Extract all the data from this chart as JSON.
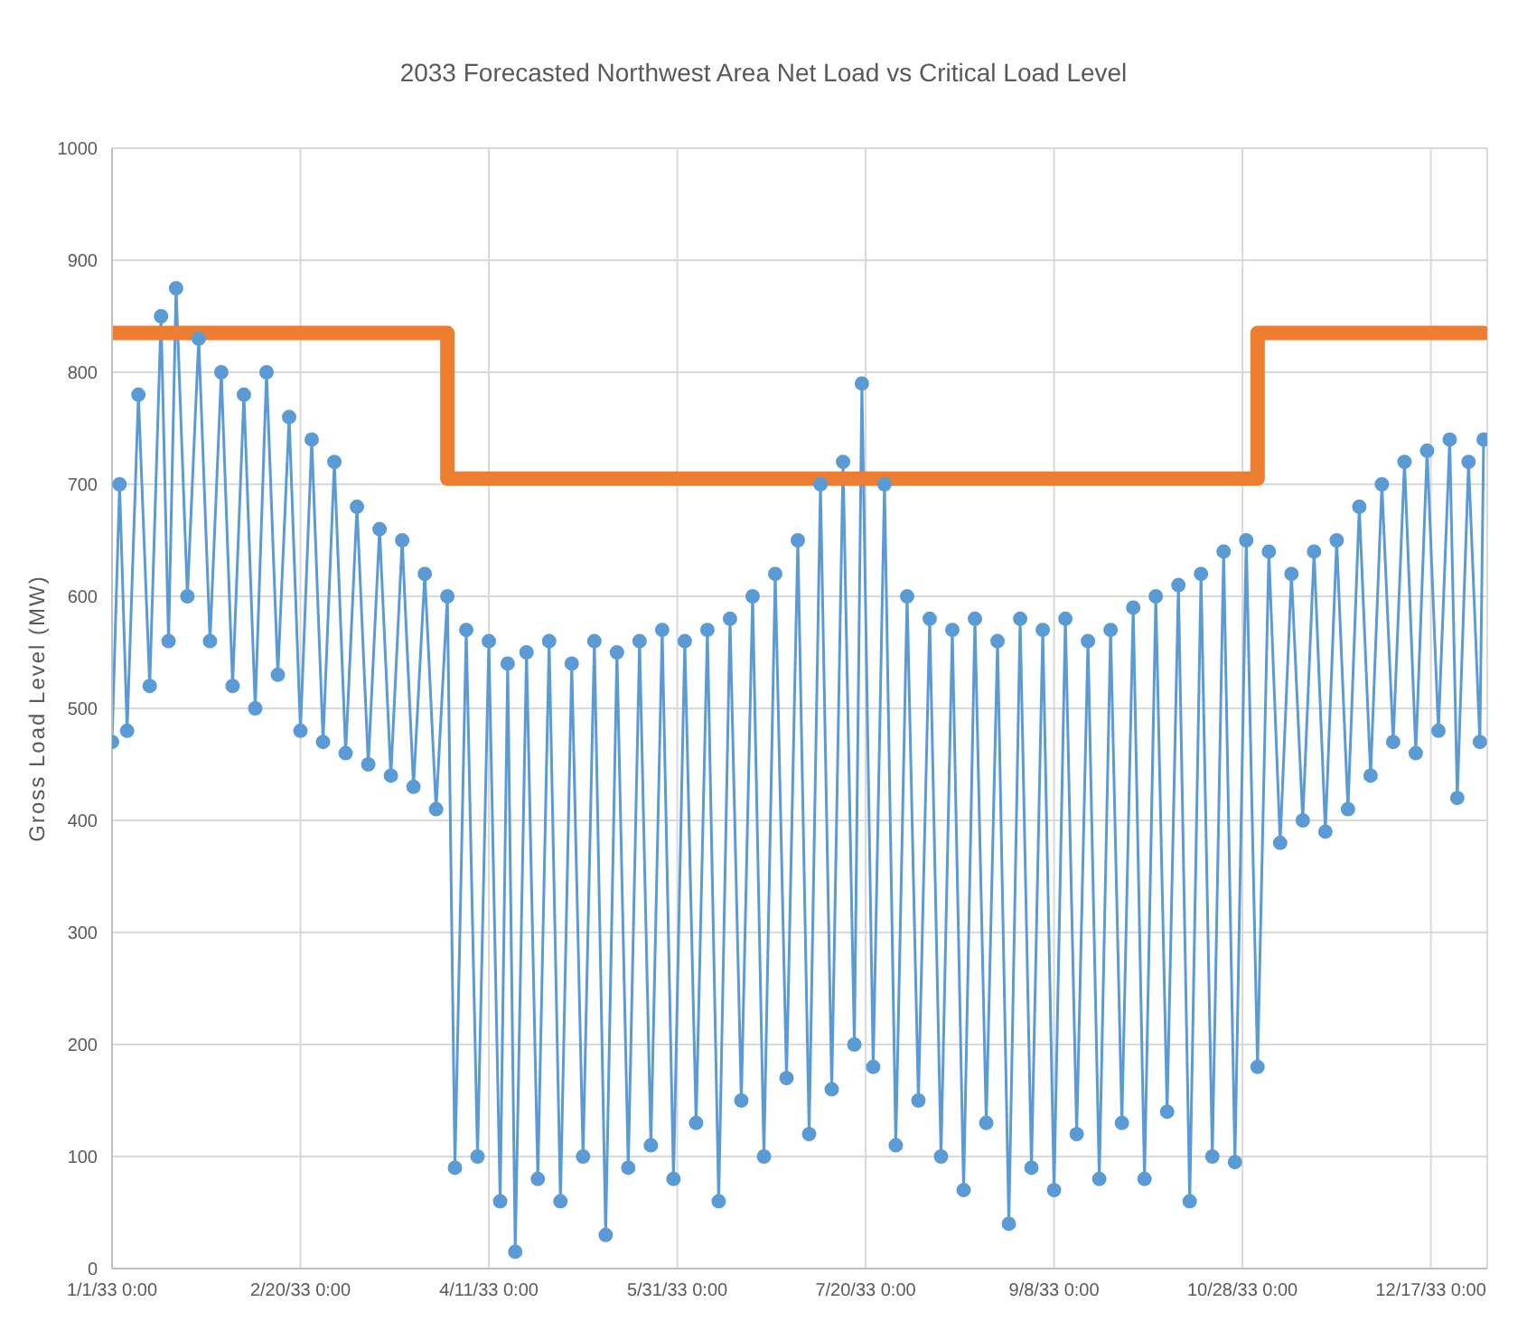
{
  "chart_data": {
    "type": "line",
    "title": "2033 Forecasted Northwest Area Net Load vs Critical Load Level",
    "ylabel": "Gross Load Level (MW)",
    "xlim": [
      "2033-01-01",
      "2033-12-31T23:00"
    ],
    "xticks": [
      {
        "value": "2033-01-01",
        "label": "1/1/33 0:00"
      },
      {
        "value": "2033-02-20",
        "label": "2/20/33 0:00"
      },
      {
        "value": "2033-04-11",
        "label": "4/11/33 0:00"
      },
      {
        "value": "2033-05-31",
        "label": "5/31/33 0:00"
      },
      {
        "value": "2033-07-20",
        "label": "7/20/33 0:00"
      },
      {
        "value": "2033-09-08",
        "label": "9/8/33 0:00"
      },
      {
        "value": "2033-10-28",
        "label": "10/28/33 0:00"
      },
      {
        "value": "2033-12-17",
        "label": "12/17/33 0:00"
      }
    ],
    "ylim": [
      0,
      1000
    ],
    "yticks": [
      0,
      100,
      200,
      300,
      400,
      500,
      600,
      700,
      800,
      900,
      1000
    ],
    "grid": true,
    "series": [
      {
        "color": "#5b9bd5",
        "marker": "circle",
        "x": [
          "2033-01-01",
          "2033-01-03",
          "2033-01-05",
          "2033-01-08",
          "2033-01-11",
          "2033-01-14",
          "2033-01-16",
          "2033-01-18",
          "2033-01-21",
          "2033-01-24",
          "2033-01-27",
          "2033-01-30",
          "2033-02-02",
          "2033-02-05",
          "2033-02-08",
          "2033-02-11",
          "2033-02-14",
          "2033-02-17",
          "2033-02-20",
          "2033-02-23",
          "2033-02-26",
          "2033-03-01",
          "2033-03-04",
          "2033-03-07",
          "2033-03-10",
          "2033-03-13",
          "2033-03-16",
          "2033-03-19",
          "2033-03-22",
          "2033-03-25",
          "2033-03-28",
          "2033-03-31",
          "2033-04-02",
          "2033-04-05",
          "2033-04-08",
          "2033-04-11",
          "2033-04-14",
          "2033-04-16",
          "2033-04-18",
          "2033-04-21",
          "2033-04-24",
          "2033-04-27",
          "2033-04-30",
          "2033-05-03",
          "2033-05-06",
          "2033-05-09",
          "2033-05-12",
          "2033-05-15",
          "2033-05-18",
          "2033-05-21",
          "2033-05-24",
          "2033-05-27",
          "2033-05-30",
          "2033-06-02",
          "2033-06-05",
          "2033-06-08",
          "2033-06-11",
          "2033-06-14",
          "2033-06-17",
          "2033-06-20",
          "2033-06-23",
          "2033-06-26",
          "2033-06-29",
          "2033-07-02",
          "2033-07-05",
          "2033-07-08",
          "2033-07-11",
          "2033-07-14",
          "2033-07-17",
          "2033-07-19",
          "2033-07-22",
          "2033-07-25",
          "2033-07-28",
          "2033-07-31",
          "2033-08-03",
          "2033-08-06",
          "2033-08-09",
          "2033-08-12",
          "2033-08-15",
          "2033-08-18",
          "2033-08-21",
          "2033-08-24",
          "2033-08-27",
          "2033-08-30",
          "2033-09-02",
          "2033-09-05",
          "2033-09-08",
          "2033-09-11",
          "2033-09-14",
          "2033-09-17",
          "2033-09-20",
          "2033-09-23",
          "2033-09-26",
          "2033-09-29",
          "2033-10-02",
          "2033-10-05",
          "2033-10-08",
          "2033-10-11",
          "2033-10-14",
          "2033-10-17",
          "2033-10-20",
          "2033-10-23",
          "2033-10-26",
          "2033-10-29",
          "2033-11-01",
          "2033-11-04",
          "2033-11-07",
          "2033-11-10",
          "2033-11-13",
          "2033-11-16",
          "2033-11-19",
          "2033-11-22",
          "2033-11-25",
          "2033-11-28",
          "2033-12-01",
          "2033-12-04",
          "2033-12-07",
          "2033-12-10",
          "2033-12-13",
          "2033-12-16",
          "2033-12-19",
          "2033-12-22",
          "2033-12-24",
          "2033-12-27",
          "2033-12-30",
          "2033-12-31"
        ],
        "values": [
          470,
          700,
          480,
          780,
          520,
          850,
          560,
          875,
          600,
          830,
          560,
          800,
          520,
          780,
          500,
          800,
          530,
          760,
          480,
          740,
          470,
          720,
          460,
          680,
          450,
          660,
          440,
          650,
          430,
          620,
          410,
          600,
          90,
          570,
          100,
          560,
          60,
          540,
          15,
          550,
          80,
          560,
          60,
          540,
          100,
          560,
          30,
          550,
          90,
          560,
          110,
          570,
          80,
          560,
          130,
          570,
          60,
          580,
          150,
          600,
          100,
          620,
          170,
          650,
          120,
          700,
          160,
          720,
          200,
          790,
          180,
          700,
          110,
          600,
          150,
          580,
          100,
          570,
          70,
          580,
          130,
          560,
          40,
          580,
          90,
          570,
          70,
          580,
          120,
          560,
          80,
          570,
          130,
          590,
          80,
          600,
          140,
          610,
          60,
          620,
          100,
          640,
          95,
          650,
          180,
          640,
          380,
          620,
          400,
          640,
          390,
          650,
          410,
          680,
          440,
          700,
          470,
          720,
          460,
          730,
          480,
          740,
          420,
          720,
          470,
          740
        ]
      },
      {
        "type": "step",
        "color": "#ed7d31",
        "marker": "none",
        "x": [
          "2033-01-01",
          "2033-03-31",
          "2033-11-01",
          "2033-12-31"
        ],
        "values": [
          835,
          705,
          835,
          835
        ]
      }
    ]
  }
}
